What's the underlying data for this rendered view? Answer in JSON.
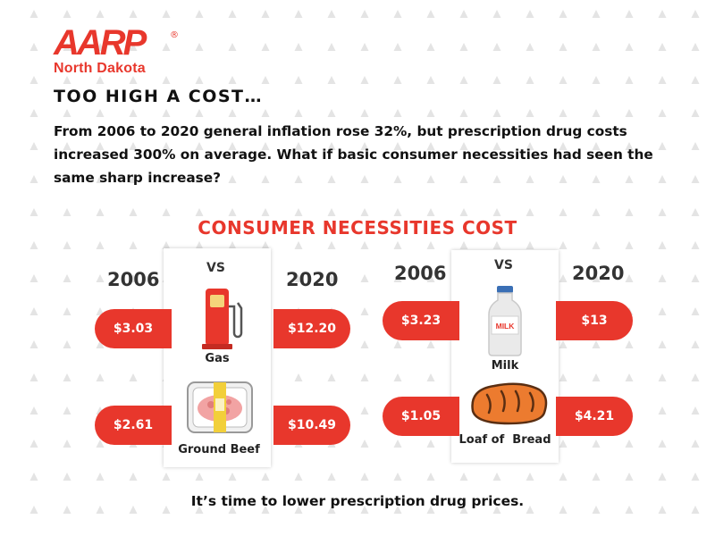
{
  "logo": {
    "brand": "AARP",
    "registered": "®",
    "region": "North Dakota"
  },
  "headline": "TOO HIGH A COST…",
  "intro": "From 2006 to 2020 general inflation rose 32%, but prescription drug costs increased 300% on average. What if basic consumer necessities had seen the same sharp increase?",
  "section_title": "CONSUMER NECESSITIES COST",
  "comparison": {
    "left": {
      "year_start": "2006",
      "vs": "VS",
      "year_end": "2020",
      "items": [
        {
          "label": "Gas",
          "icon": "gas-pump-icon",
          "price_2006": "$3.03",
          "price_2020": "$12.20"
        },
        {
          "label": "Ground Beef",
          "icon": "ground-beef-icon",
          "price_2006": "$2.61",
          "price_2020": "$10.49"
        }
      ]
    },
    "right": {
      "year_start": "2006",
      "vs": "VS",
      "year_end": "2020",
      "items": [
        {
          "label": "Milk",
          "icon": "milk-bottle-icon",
          "icon_text": "MILK",
          "price_2006": "$3.23",
          "price_2020": "$13"
        },
        {
          "label": "Loaf of  Bread",
          "icon": "bread-loaf-icon",
          "price_2006": "$1.05",
          "price_2020": "$4.21"
        }
      ]
    }
  },
  "footer": "It’s time to lower prescription drug prices.",
  "colors": {
    "accent": "#e8372c",
    "pattern": "#e4e4e4",
    "text": "#111111"
  }
}
